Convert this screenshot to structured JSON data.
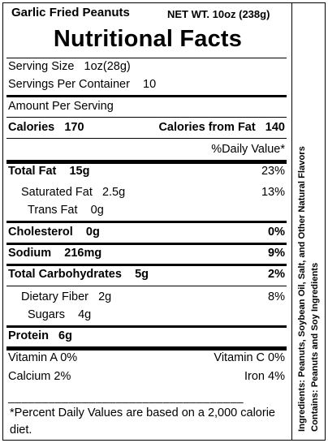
{
  "header": {
    "product_name": "Garlic  Fried Peanuts",
    "net_weight": "NET WT. 10oz (238g)",
    "title": "Nutritional Facts"
  },
  "serving": {
    "size_label": "Serving Size",
    "size_value": "1oz(28g)",
    "per_container_label": "Servings Per Container",
    "per_container_value": "10",
    "amount_label": "Amount Per Serving"
  },
  "calories": {
    "label": "Calories",
    "value": "170",
    "fat_label": "Calories from Fat",
    "fat_value": "140"
  },
  "daily_value_header": "%Daily Value*",
  "nutrients": {
    "total_fat": {
      "label": "Total Fat",
      "amount": "15g",
      "dv": "23%"
    },
    "saturated_fat": {
      "label": "Saturated Fat",
      "amount": "2.5g",
      "dv": "13%"
    },
    "trans_fat": {
      "label": "Trans Fat",
      "amount": "0g"
    },
    "cholesterol": {
      "label": "Cholesterol",
      "amount": "0g",
      "dv": "0%"
    },
    "sodium": {
      "label": "Sodium",
      "amount": "216mg",
      "dv": "9%"
    },
    "total_carbohydrates": {
      "label": "Total Carbohydrates",
      "amount": "5g",
      "dv": "2%"
    },
    "dietary_fiber": {
      "label": "Dietary Fiber",
      "amount": "2g",
      "dv": "8%"
    },
    "sugars": {
      "label": "Sugars",
      "amount": "4g"
    },
    "protein": {
      "label": "Protein",
      "amount": "6g"
    }
  },
  "vitamins": {
    "vitamin_a": "Vitamin A  0%",
    "vitamin_c": "Vitamin C  0%",
    "calcium": "Calcium  2%",
    "iron": "Iron   4%"
  },
  "footnote": {
    "dashes": "___________________________________",
    "text": "*Percent Daily Values are based on a 2,000 calorie diet."
  },
  "side": {
    "ingredients": "Ingredients: Peanuts, Soybean Oil, Salt, and Other Natural Flavors",
    "contains": "Contains: Peanuts and Soy Ingredients"
  }
}
